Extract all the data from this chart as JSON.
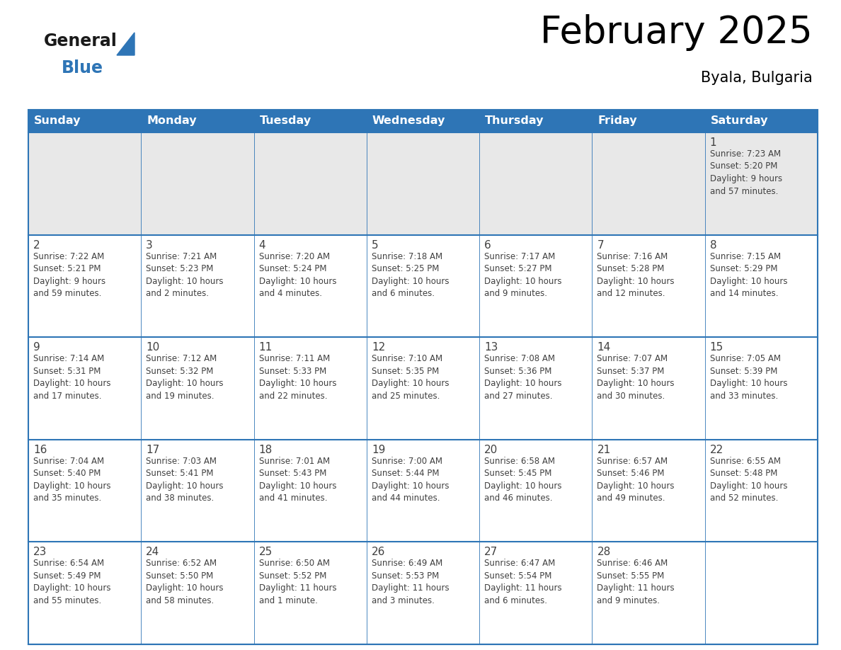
{
  "title": "February 2025",
  "subtitle": "Byala, Bulgaria",
  "header_bg": "#2E75B6",
  "header_text_color": "#FFFFFF",
  "row0_bg": "#E8E8E8",
  "cell_bg": "#FFFFFF",
  "border_color": "#2E75B6",
  "grid_color": "#2E75B6",
  "text_color": "#404040",
  "days_of_week": [
    "Sunday",
    "Monday",
    "Tuesday",
    "Wednesday",
    "Thursday",
    "Friday",
    "Saturday"
  ],
  "weeks": [
    [
      {
        "day": "",
        "info": ""
      },
      {
        "day": "",
        "info": ""
      },
      {
        "day": "",
        "info": ""
      },
      {
        "day": "",
        "info": ""
      },
      {
        "day": "",
        "info": ""
      },
      {
        "day": "",
        "info": ""
      },
      {
        "day": "1",
        "info": "Sunrise: 7:23 AM\nSunset: 5:20 PM\nDaylight: 9 hours\nand 57 minutes."
      }
    ],
    [
      {
        "day": "2",
        "info": "Sunrise: 7:22 AM\nSunset: 5:21 PM\nDaylight: 9 hours\nand 59 minutes."
      },
      {
        "day": "3",
        "info": "Sunrise: 7:21 AM\nSunset: 5:23 PM\nDaylight: 10 hours\nand 2 minutes."
      },
      {
        "day": "4",
        "info": "Sunrise: 7:20 AM\nSunset: 5:24 PM\nDaylight: 10 hours\nand 4 minutes."
      },
      {
        "day": "5",
        "info": "Sunrise: 7:18 AM\nSunset: 5:25 PM\nDaylight: 10 hours\nand 6 minutes."
      },
      {
        "day": "6",
        "info": "Sunrise: 7:17 AM\nSunset: 5:27 PM\nDaylight: 10 hours\nand 9 minutes."
      },
      {
        "day": "7",
        "info": "Sunrise: 7:16 AM\nSunset: 5:28 PM\nDaylight: 10 hours\nand 12 minutes."
      },
      {
        "day": "8",
        "info": "Sunrise: 7:15 AM\nSunset: 5:29 PM\nDaylight: 10 hours\nand 14 minutes."
      }
    ],
    [
      {
        "day": "9",
        "info": "Sunrise: 7:14 AM\nSunset: 5:31 PM\nDaylight: 10 hours\nand 17 minutes."
      },
      {
        "day": "10",
        "info": "Sunrise: 7:12 AM\nSunset: 5:32 PM\nDaylight: 10 hours\nand 19 minutes."
      },
      {
        "day": "11",
        "info": "Sunrise: 7:11 AM\nSunset: 5:33 PM\nDaylight: 10 hours\nand 22 minutes."
      },
      {
        "day": "12",
        "info": "Sunrise: 7:10 AM\nSunset: 5:35 PM\nDaylight: 10 hours\nand 25 minutes."
      },
      {
        "day": "13",
        "info": "Sunrise: 7:08 AM\nSunset: 5:36 PM\nDaylight: 10 hours\nand 27 minutes."
      },
      {
        "day": "14",
        "info": "Sunrise: 7:07 AM\nSunset: 5:37 PM\nDaylight: 10 hours\nand 30 minutes."
      },
      {
        "day": "15",
        "info": "Sunrise: 7:05 AM\nSunset: 5:39 PM\nDaylight: 10 hours\nand 33 minutes."
      }
    ],
    [
      {
        "day": "16",
        "info": "Sunrise: 7:04 AM\nSunset: 5:40 PM\nDaylight: 10 hours\nand 35 minutes."
      },
      {
        "day": "17",
        "info": "Sunrise: 7:03 AM\nSunset: 5:41 PM\nDaylight: 10 hours\nand 38 minutes."
      },
      {
        "day": "18",
        "info": "Sunrise: 7:01 AM\nSunset: 5:43 PM\nDaylight: 10 hours\nand 41 minutes."
      },
      {
        "day": "19",
        "info": "Sunrise: 7:00 AM\nSunset: 5:44 PM\nDaylight: 10 hours\nand 44 minutes."
      },
      {
        "day": "20",
        "info": "Sunrise: 6:58 AM\nSunset: 5:45 PM\nDaylight: 10 hours\nand 46 minutes."
      },
      {
        "day": "21",
        "info": "Sunrise: 6:57 AM\nSunset: 5:46 PM\nDaylight: 10 hours\nand 49 minutes."
      },
      {
        "day": "22",
        "info": "Sunrise: 6:55 AM\nSunset: 5:48 PM\nDaylight: 10 hours\nand 52 minutes."
      }
    ],
    [
      {
        "day": "23",
        "info": "Sunrise: 6:54 AM\nSunset: 5:49 PM\nDaylight: 10 hours\nand 55 minutes."
      },
      {
        "day": "24",
        "info": "Sunrise: 6:52 AM\nSunset: 5:50 PM\nDaylight: 10 hours\nand 58 minutes."
      },
      {
        "day": "25",
        "info": "Sunrise: 6:50 AM\nSunset: 5:52 PM\nDaylight: 11 hours\nand 1 minute."
      },
      {
        "day": "26",
        "info": "Sunrise: 6:49 AM\nSunset: 5:53 PM\nDaylight: 11 hours\nand 3 minutes."
      },
      {
        "day": "27",
        "info": "Sunrise: 6:47 AM\nSunset: 5:54 PM\nDaylight: 11 hours\nand 6 minutes."
      },
      {
        "day": "28",
        "info": "Sunrise: 6:46 AM\nSunset: 5:55 PM\nDaylight: 11 hours\nand 9 minutes."
      },
      {
        "day": "",
        "info": ""
      }
    ]
  ],
  "logo_text_general": "General",
  "logo_text_blue": "Blue",
  "logo_color_general": "#1a1a1a",
  "logo_color_blue": "#2E75B6",
  "logo_triangle_color": "#2E75B6"
}
